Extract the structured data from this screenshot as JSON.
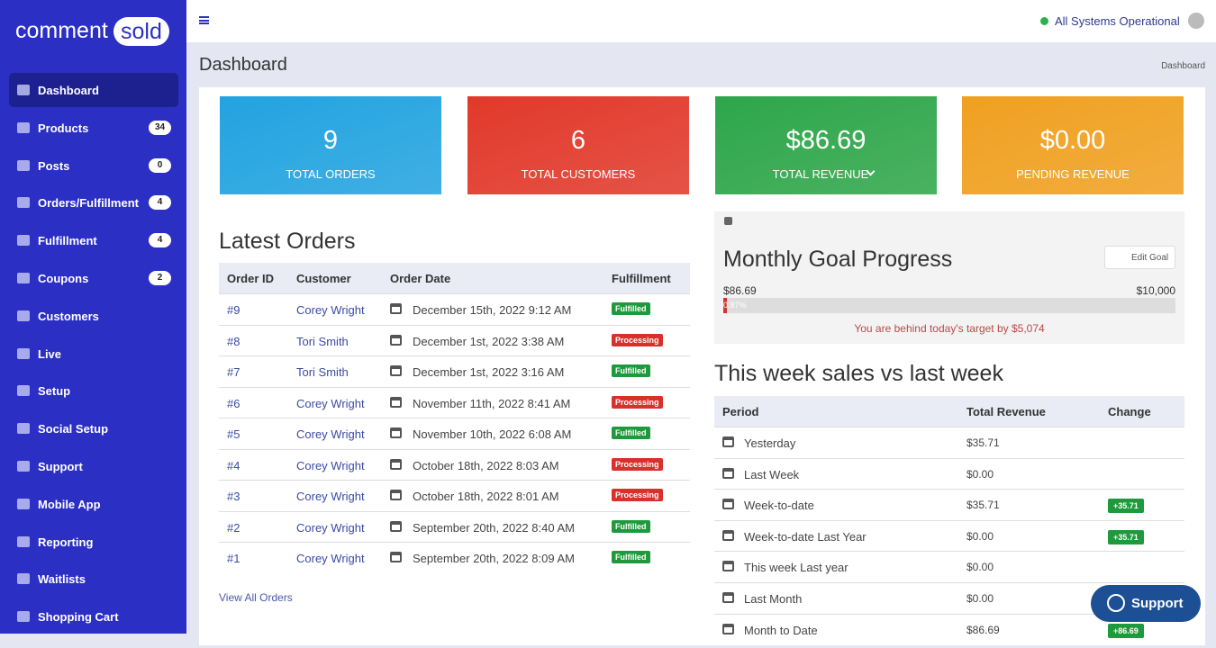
{
  "brand": {
    "part1": "comment",
    "part2": "sold"
  },
  "sidebar": {
    "items": [
      {
        "label": "Dashboard",
        "active": true
      },
      {
        "label": "Products",
        "badge": 34
      },
      {
        "label": "Posts",
        "badge": 0
      },
      {
        "label": "Orders/Fulfillment",
        "badge": 4
      },
      {
        "label": "Fulfillment",
        "badge": 4
      },
      {
        "label": "Coupons",
        "badge": 2
      },
      {
        "label": "Customers"
      },
      {
        "label": "Live"
      },
      {
        "label": "Setup"
      },
      {
        "label": "Social Setup"
      },
      {
        "label": "Support"
      },
      {
        "label": "Mobile App"
      },
      {
        "label": "Reporting"
      },
      {
        "label": "Waitlists"
      },
      {
        "label": "Shopping Cart"
      }
    ]
  },
  "topbar": {
    "status": "All Systems Operational"
  },
  "header": {
    "title": "Dashboard",
    "breadcrumb": "Dashboard"
  },
  "stats": [
    {
      "value": 9,
      "label": "TOTAL ORDERS",
      "color": "#22a3e0"
    },
    {
      "value": 6,
      "label": "TOTAL CUSTOMERS",
      "color": "#e1392a"
    },
    {
      "value": "$86.69",
      "label": "TOTAL REVENUE",
      "color": "#2ea64a",
      "dropdown": true
    },
    {
      "value": "$0.00",
      "label": "PENDING REVENUE",
      "color": "#f0a020"
    }
  ],
  "latest_orders": {
    "title": "Latest Orders",
    "columns": [
      "Order ID",
      "Customer",
      "Order Date",
      "Fulfillment"
    ],
    "rows": [
      {
        "id": "#9",
        "customer": "Corey Wright",
        "date": "December 15th, 2022 9:12 AM",
        "status": "Fulfilled",
        "status_color": "#1e9a3d"
      },
      {
        "id": "#8",
        "customer": "Tori Smith",
        "date": "December 1st, 2022 3:38 AM",
        "status": "Processing",
        "status_color": "#d8302b"
      },
      {
        "id": "#7",
        "customer": "Tori Smith",
        "date": "December 1st, 2022 3:16 AM",
        "status": "Fulfilled",
        "status_color": "#1e9a3d"
      },
      {
        "id": "#6",
        "customer": "Corey Wright",
        "date": "November 11th, 2022 8:41 AM",
        "status": "Processing",
        "status_color": "#d8302b"
      },
      {
        "id": "#5",
        "customer": "Corey Wright",
        "date": "November 10th, 2022 6:08 AM",
        "status": "Fulfilled",
        "status_color": "#1e9a3d"
      },
      {
        "id": "#4",
        "customer": "Corey Wright",
        "date": "October 18th, 2022 8:03 AM",
        "status": "Processing",
        "status_color": "#d8302b"
      },
      {
        "id": "#3",
        "customer": "Corey Wright",
        "date": "October 18th, 2022 8:01 AM",
        "status": "Processing",
        "status_color": "#d8302b"
      },
      {
        "id": "#2",
        "customer": "Corey Wright",
        "date": "September 20th, 2022 8:40 AM",
        "status": "Fulfilled",
        "status_color": "#1e9a3d"
      },
      {
        "id": "#1",
        "customer": "Corey Wright",
        "date": "September 20th, 2022 8:09 AM",
        "status": "Fulfilled",
        "status_color": "#1e9a3d"
      }
    ],
    "link": "View All Orders"
  },
  "goal": {
    "title": "Monthly Goal Progress",
    "button": "Edit Goal",
    "current": "$86.69",
    "target": "$10,000",
    "progress": {
      "value": 0.87,
      "label": "0.87%"
    },
    "message": "You are behind today's target by $5,074"
  },
  "weekly": {
    "title": "This week sales vs last week",
    "columns": [
      "Period",
      "Total Revenue",
      "Change"
    ],
    "rows": [
      {
        "period": "Yesterday",
        "revenue": "$35.71",
        "change": null
      },
      {
        "period": "Last Week",
        "revenue": "$0.00",
        "change": null
      },
      {
        "period": "Week-to-date",
        "revenue": "$35.71",
        "change": "+35.71"
      },
      {
        "period": "Week-to-date Last Year",
        "revenue": "$0.00",
        "change": "+35.71"
      },
      {
        "period": "This week Last year",
        "revenue": "$0.00",
        "change": null
      },
      {
        "period": "Last Month",
        "revenue": "$0.00",
        "change": null
      },
      {
        "period": "Month to Date",
        "revenue": "$86.69",
        "change": "+86.69"
      }
    ]
  },
  "support_button": "Support"
}
